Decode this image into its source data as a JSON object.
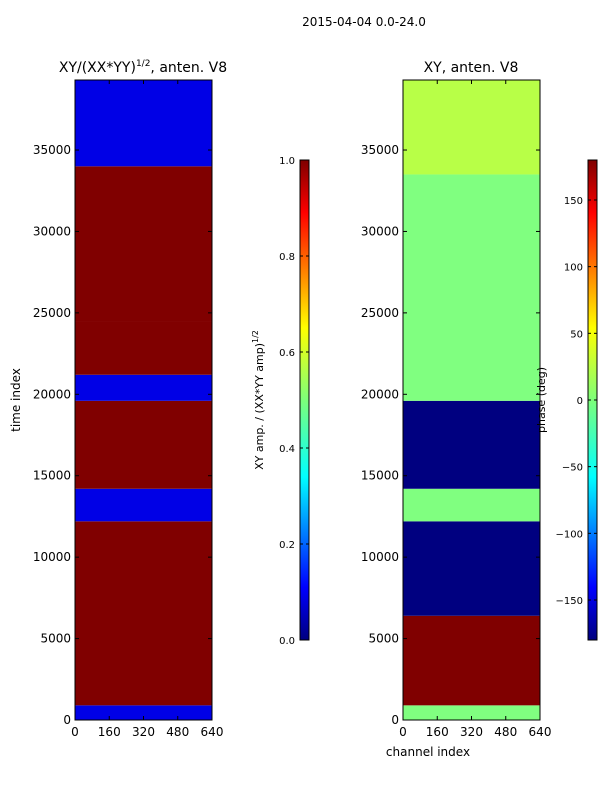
{
  "figure_title": "2015-04-04 0.0-24.0",
  "chart_data": [
    {
      "type": "heatmap",
      "title": "XY/(XX*YY)",
      "title_exponent": "1/2",
      "title_suffix": ", anten. V8",
      "xlabel": "",
      "ylabel": "time index",
      "xlim": [
        0,
        640
      ],
      "ylim": [
        0,
        39300
      ],
      "xticks": [
        0,
        160,
        320,
        480,
        640
      ],
      "yticks": [
        0,
        5000,
        10000,
        15000,
        20000,
        25000,
        30000,
        35000
      ],
      "colorbar": {
        "label": "XY amp. / (XX*YY amp)",
        "label_exponent": "1/2",
        "range": [
          0.0,
          1.0
        ],
        "ticks": [
          0.0,
          0.2,
          0.4,
          0.6,
          0.8,
          1.0
        ],
        "tick_labels": [
          "0.0",
          "0.2",
          "0.4",
          "0.6",
          "0.8",
          "1.0"
        ]
      },
      "colormap": "jet",
      "bands": [
        {
          "y0": 0,
          "y1": 900,
          "value": 0.1
        },
        {
          "y0": 900,
          "y1": 12200,
          "value": 1.0
        },
        {
          "y0": 12200,
          "y1": 14200,
          "value": 0.1
        },
        {
          "y0": 14200,
          "y1": 19600,
          "value": 1.0
        },
        {
          "y0": 19600,
          "y1": 21200,
          "value": 0.1
        },
        {
          "y0": 21200,
          "y1": 24500,
          "value": 1.0
        },
        {
          "y0": 24500,
          "y1": 34000,
          "value": 1.0
        },
        {
          "y0": 34000,
          "y1": 39300,
          "value": 0.1
        }
      ]
    },
    {
      "type": "heatmap",
      "title": "XY, anten. V8",
      "xlabel": "channel index",
      "ylabel": "",
      "xlim": [
        0,
        640
      ],
      "ylim": [
        0,
        39300
      ],
      "xticks": [
        0,
        160,
        320,
        480,
        640
      ],
      "yticks": [
        0,
        5000,
        10000,
        15000,
        20000,
        25000,
        30000,
        35000
      ],
      "colorbar": {
        "label": "phase (deg)",
        "range": [
          -180,
          180
        ],
        "ticks": [
          -150,
          -100,
          -50,
          0,
          50,
          100,
          150
        ],
        "tick_labels": [
          "−150",
          "−100",
          "−50",
          "0",
          "50",
          "100",
          "150"
        ]
      },
      "colormap": "jet",
      "bands": [
        {
          "y0": 0,
          "y1": 900,
          "value": 0
        },
        {
          "y0": 900,
          "y1": 6400,
          "value": 180
        },
        {
          "y0": 6400,
          "y1": 12200,
          "value": -180
        },
        {
          "y0": 12200,
          "y1": 14200,
          "value": 0
        },
        {
          "y0": 14200,
          "y1": 19600,
          "value": -180
        },
        {
          "y0": 19600,
          "y1": 33500,
          "value": 0
        },
        {
          "y0": 33500,
          "y1": 39300,
          "value": 20
        }
      ]
    }
  ]
}
